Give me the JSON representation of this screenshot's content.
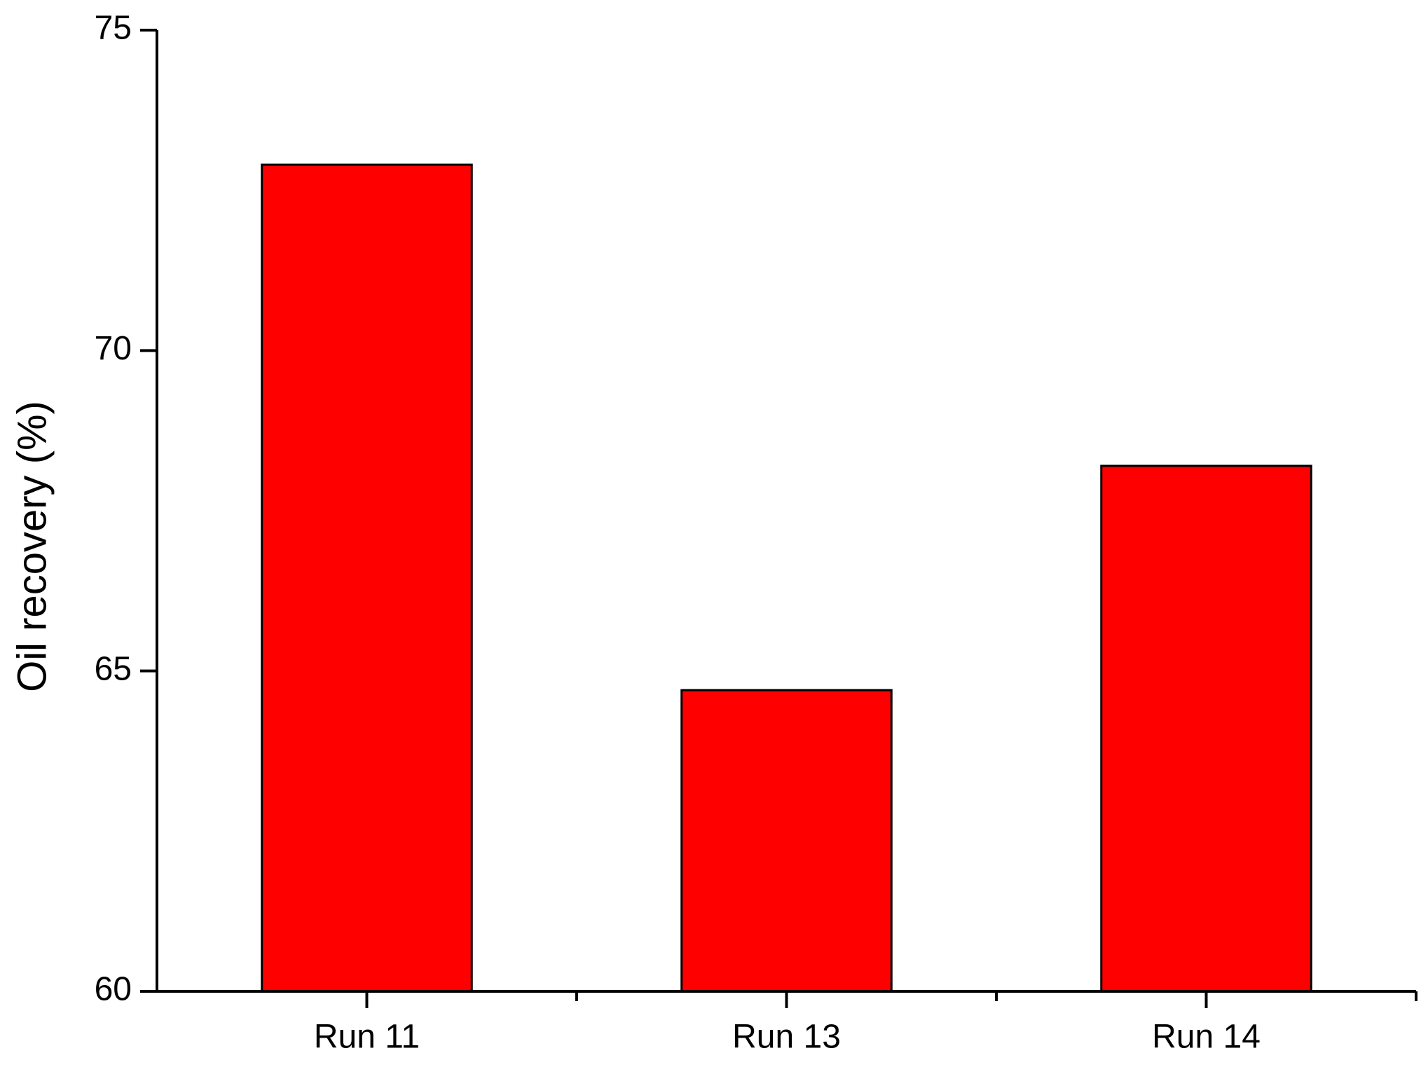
{
  "chart_data": {
    "type": "bar",
    "y_label": "Oil recovery (%)",
    "categories": [
      "Run 11",
      "Run 13",
      "Run 14"
    ],
    "values": [
      72.9,
      64.7,
      68.2
    ],
    "color": "#ff0000",
    "ylim": [
      60,
      75
    ],
    "yticks": [
      60,
      65,
      70,
      75
    ],
    "grid": false
  }
}
